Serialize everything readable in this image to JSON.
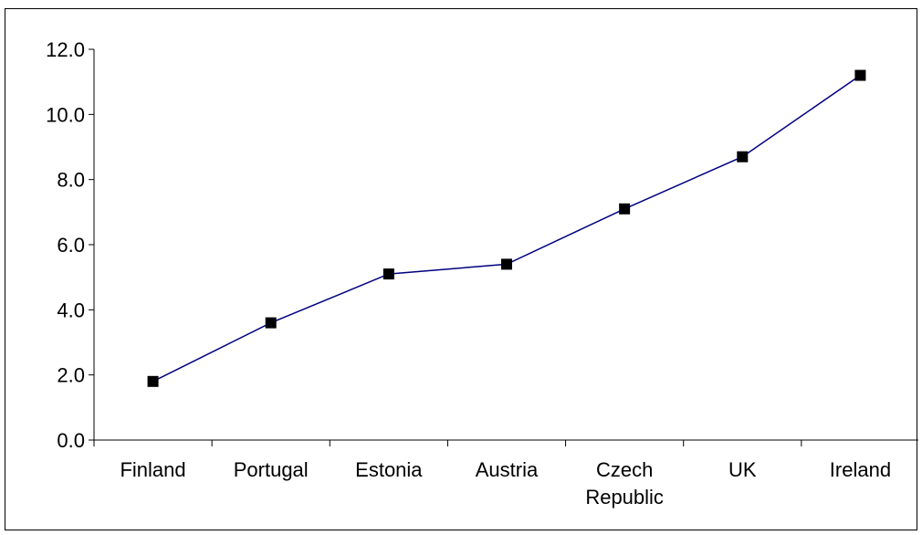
{
  "chart_data": {
    "type": "line",
    "categories": [
      [
        "Finland"
      ],
      [
        "Portugal"
      ],
      [
        "Estonia"
      ],
      [
        "Austria"
      ],
      [
        "Czech",
        "Republic"
      ],
      [
        "UK"
      ],
      [
        "Ireland"
      ]
    ],
    "series": [
      {
        "values": [
          1.8,
          3.6,
          5.1,
          5.4,
          7.1,
          8.7,
          11.2
        ],
        "color": "#000080",
        "marker": "square",
        "marker_color": "#000000"
      }
    ],
    "title": "",
    "xlabel": "",
    "ylabel": "",
    "ylim": [
      0,
      12
    ],
    "yticks": [
      "0.0",
      "2.0",
      "4.0",
      "6.0",
      "8.0",
      "10.0",
      "12.0"
    ],
    "grid": false,
    "legend": "none"
  }
}
